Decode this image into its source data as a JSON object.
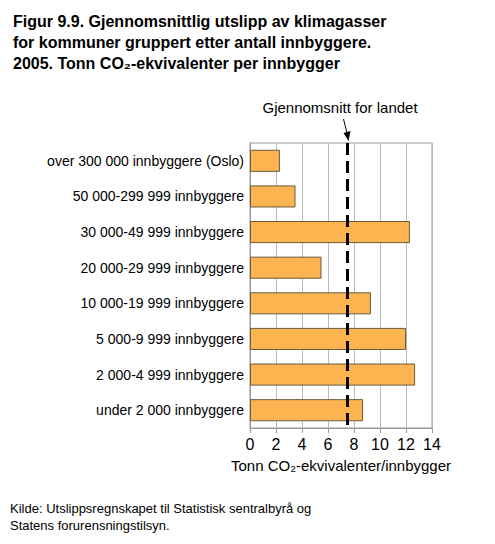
{
  "chart_data": {
    "type": "bar",
    "title": "Figur 9.9. Gjennomsnittlig utslipp av klimagasser\nfor kommuner gruppert etter antall innbyggere.\n2005. Tonn CO₂-ekvivalenter per innbygger",
    "orientation": "horizontal",
    "categories": [
      "over 300 000 innbyggere (Oslo)",
      "50 000-299 999 innbyggere",
      "30 000-49 999 innbyggere",
      "20 000-29 999 innbyggere",
      "10 000-19 999 innbyggere",
      "5 000-9 999 innbyggere",
      "2 000-4 999 innbyggere",
      "under 2 000 innbyggere"
    ],
    "values": [
      2.3,
      3.5,
      12.3,
      5.5,
      9.3,
      12.0,
      12.7,
      8.7
    ],
    "color": "#fbb450",
    "xlabel": "Tonn CO₂-ekvivalenter/innbygger",
    "xlim": [
      0,
      14
    ],
    "xticks": [
      0,
      2,
      4,
      6,
      8,
      10,
      12,
      14
    ],
    "grid": true,
    "reference_line": {
      "value": 7.5,
      "label": "Gjennomsnitt for landet",
      "line_style": "dashed"
    },
    "source": "Kilde: Utslippsregnskapet til Statistisk sentralbyrå og\nStatens forurensningstilsyn."
  }
}
